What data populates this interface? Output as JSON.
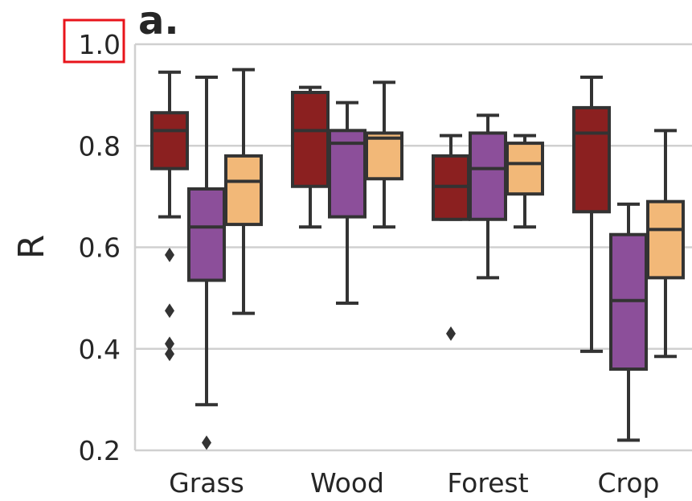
{
  "chart_data": {
    "type": "box",
    "panel_label": "a.",
    "ylabel": "R",
    "ylim": [
      0.2,
      1.0
    ],
    "yticks": [
      {
        "value": 0.2,
        "label": "0.2"
      },
      {
        "value": 0.4,
        "label": "0.4"
      },
      {
        "value": 0.6,
        "label": "0.6"
      },
      {
        "value": 0.8,
        "label": "0.8"
      },
      {
        "value": 1.0,
        "label": "1.0"
      }
    ],
    "highlighted_tick": "1.0",
    "highlight_color": "#e8141b",
    "grid": "horizontal",
    "categories": [
      "Grass",
      "Wood",
      "Forest",
      "Crop"
    ],
    "series_colors": [
      "#8b2020",
      "#8c4f9a",
      "#f2b878"
    ],
    "line_color": "#333333",
    "grid_color": "#d0d0d0",
    "boxes": [
      [
        {
          "whislo": 0.66,
          "q1": 0.755,
          "med": 0.83,
          "q3": 0.865,
          "whishi": 0.945,
          "fliers": [
            0.39,
            0.41,
            0.475,
            0.585
          ]
        },
        {
          "whislo": 0.29,
          "q1": 0.535,
          "med": 0.64,
          "q3": 0.715,
          "whishi": 0.935,
          "fliers": [
            0.215
          ]
        },
        {
          "whislo": 0.47,
          "q1": 0.645,
          "med": 0.73,
          "q3": 0.78,
          "whishi": 0.95,
          "fliers": []
        }
      ],
      [
        {
          "whislo": 0.64,
          "q1": 0.72,
          "med": 0.83,
          "q3": 0.905,
          "whishi": 0.915,
          "fliers": []
        },
        {
          "whislo": 0.49,
          "q1": 0.66,
          "med": 0.805,
          "q3": 0.83,
          "whishi": 0.885,
          "fliers": []
        },
        {
          "whislo": 0.64,
          "q1": 0.735,
          "med": 0.815,
          "q3": 0.825,
          "whishi": 0.925,
          "fliers": []
        }
      ],
      [
        {
          "whislo": 0.655,
          "q1": 0.655,
          "med": 0.72,
          "q3": 0.78,
          "whishi": 0.82,
          "fliers": [
            0.43
          ]
        },
        {
          "whislo": 0.54,
          "q1": 0.655,
          "med": 0.755,
          "q3": 0.825,
          "whishi": 0.86,
          "fliers": []
        },
        {
          "whislo": 0.64,
          "q1": 0.705,
          "med": 0.765,
          "q3": 0.805,
          "whishi": 0.82,
          "fliers": []
        }
      ],
      [
        {
          "whislo": 0.395,
          "q1": 0.67,
          "med": 0.825,
          "q3": 0.875,
          "whishi": 0.935,
          "fliers": []
        },
        {
          "whislo": 0.22,
          "q1": 0.36,
          "med": 0.495,
          "q3": 0.625,
          "whishi": 0.685,
          "fliers": []
        },
        {
          "whislo": 0.385,
          "q1": 0.54,
          "med": 0.635,
          "q3": 0.69,
          "whishi": 0.83,
          "fliers": []
        }
      ]
    ]
  }
}
